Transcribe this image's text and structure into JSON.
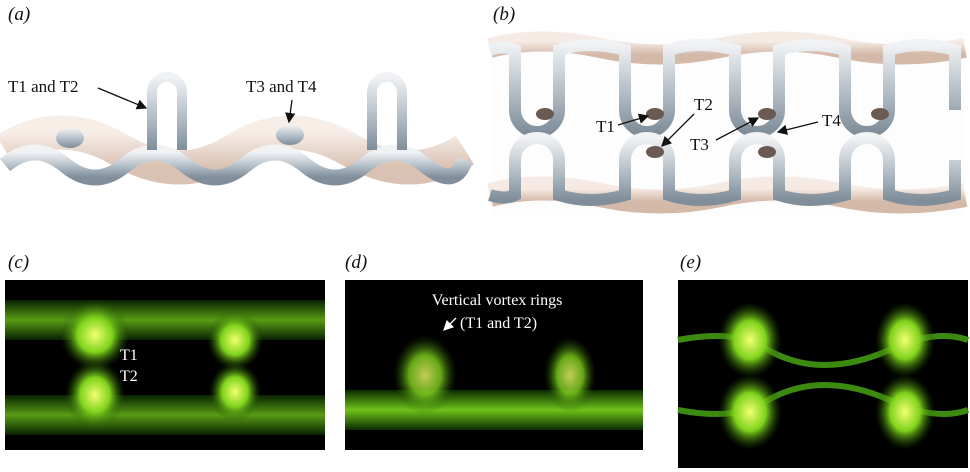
{
  "panels": [
    {
      "label": "(a)",
      "annotations": [
        "T1 and T2",
        "T3 and T4"
      ]
    },
    {
      "label": "(b)",
      "annotations": [
        "T1",
        "T2",
        "T3",
        "T4"
      ]
    },
    {
      "label": "(c)",
      "annotations": [
        "T1",
        "T2"
      ]
    },
    {
      "label": "(d)",
      "annotations": [
        "Vertical vortex rings",
        "(T1 and T2)"
      ]
    },
    {
      "label": "(e)",
      "annotations": []
    }
  ]
}
